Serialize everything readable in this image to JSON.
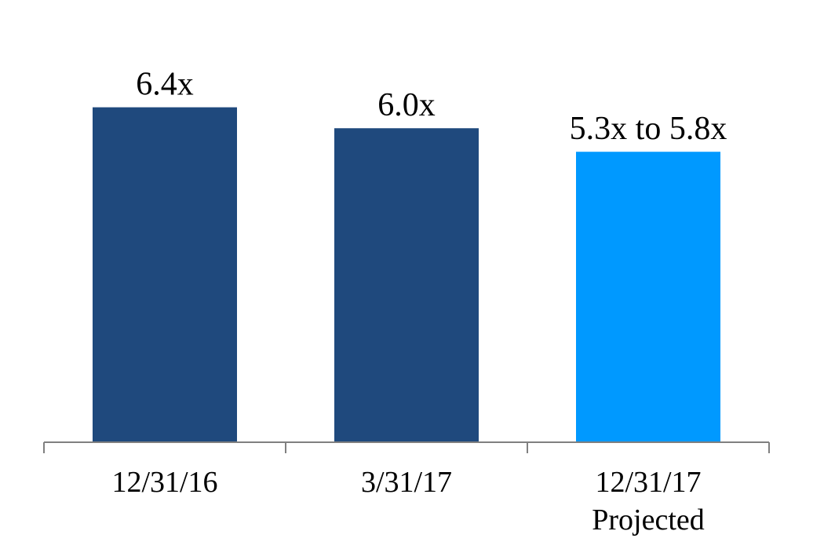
{
  "chart_data": {
    "type": "bar",
    "categories": [
      {
        "line1": "12/31/16",
        "line2": ""
      },
      {
        "line1": "3/31/17",
        "line2": ""
      },
      {
        "line1": "12/31/17",
        "line2": "Projected"
      }
    ],
    "values": [
      6.4,
      6.0,
      5.55
    ],
    "data_labels": [
      "6.4x",
      "6.0x",
      "5.3x to 5.8x"
    ],
    "bar_colors": [
      "#1F497D",
      "#1F497D",
      "#0099FF"
    ],
    "axis_color": "#808080",
    "ylim": [
      0,
      8.45
    ],
    "grid": false,
    "legend": "none",
    "title": "",
    "xlabel": "",
    "ylabel": ""
  }
}
